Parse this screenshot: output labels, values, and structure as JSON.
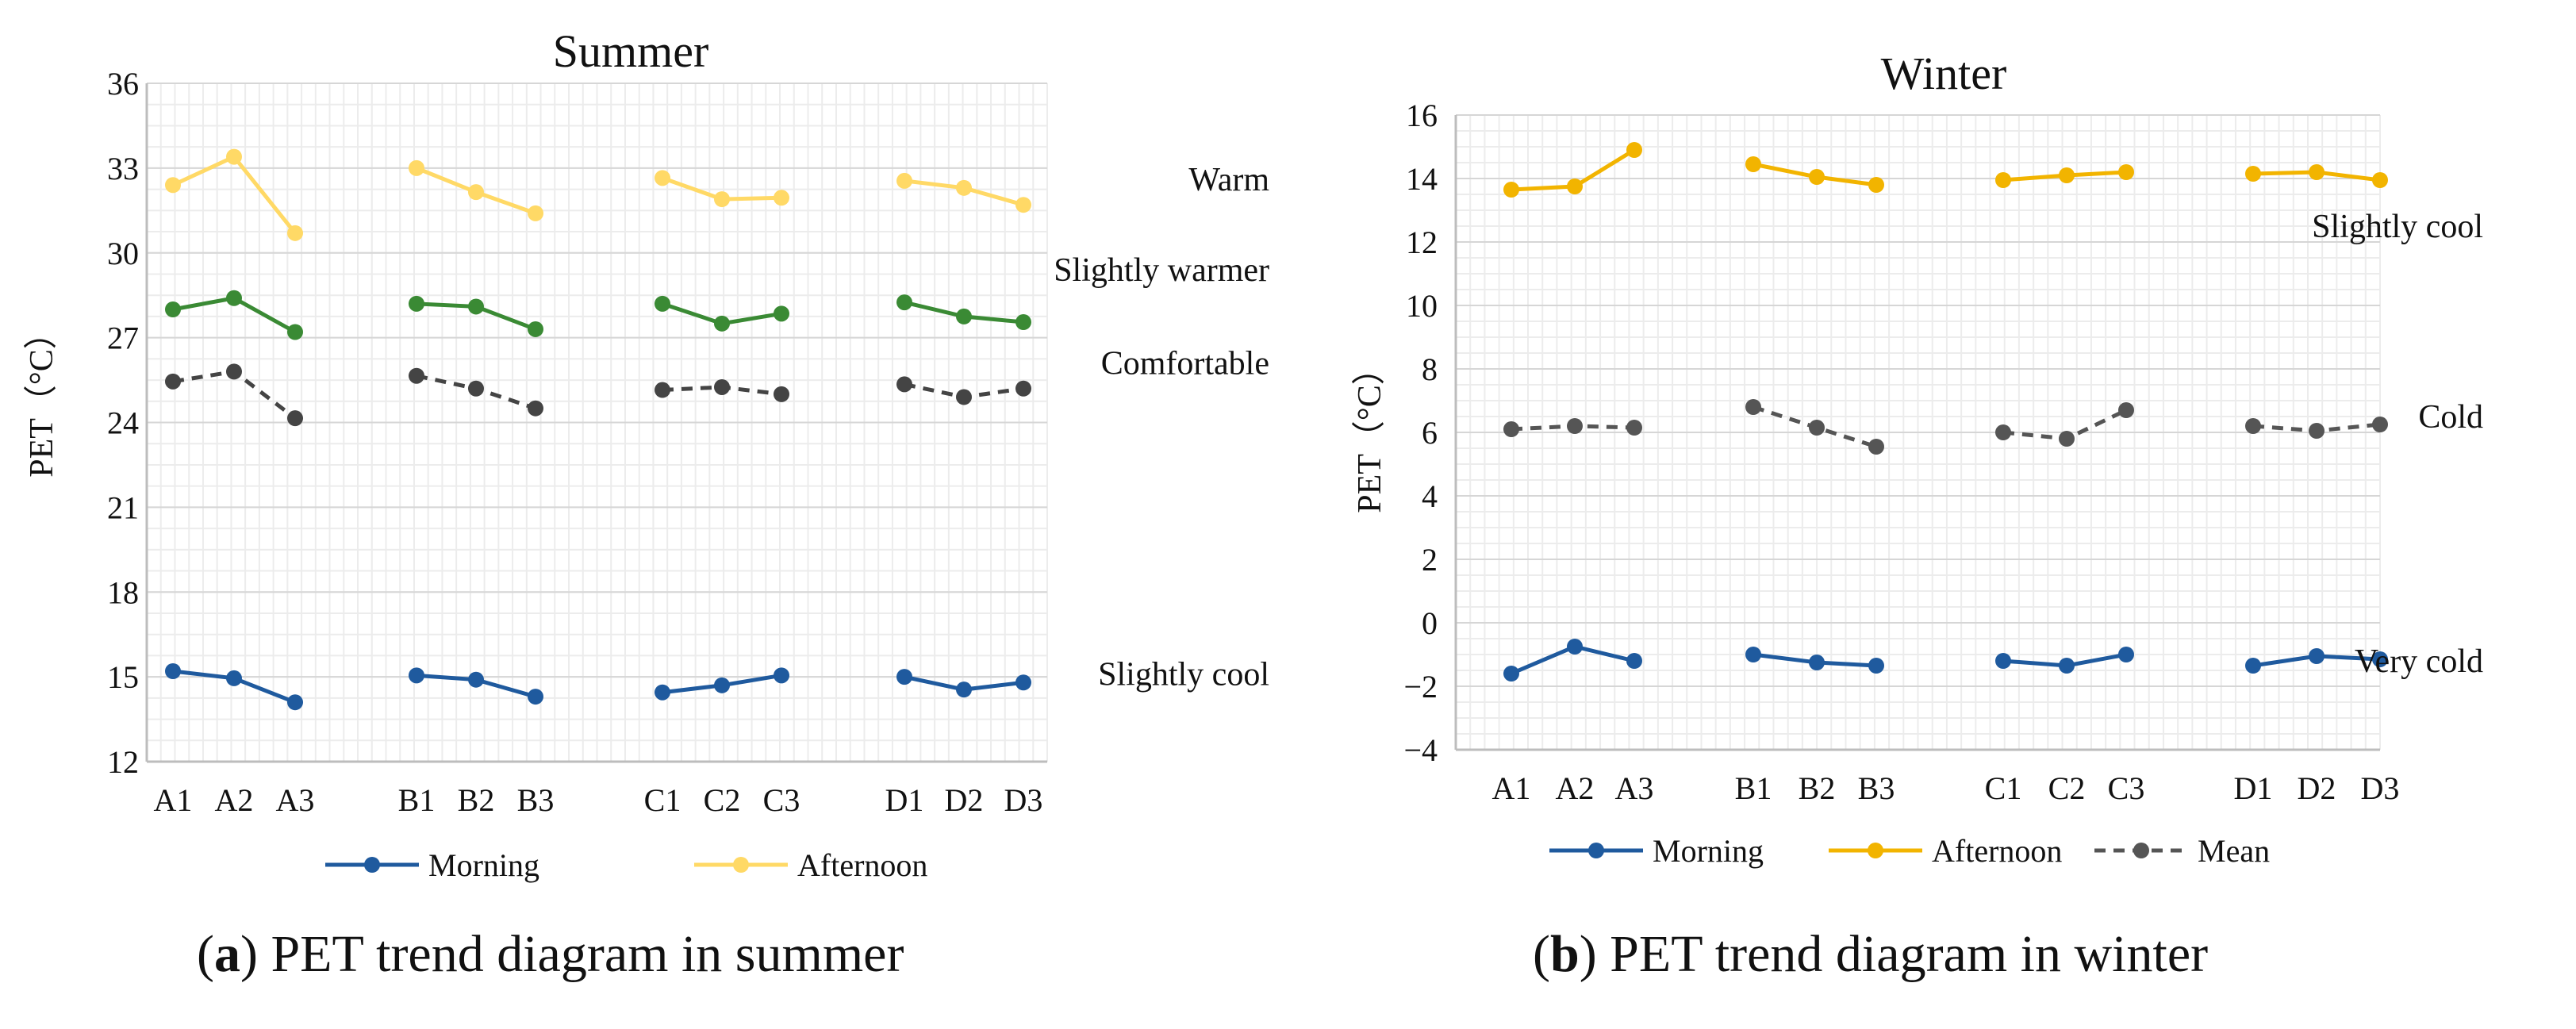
{
  "chart_data": [
    {
      "type": "line",
      "title": "Summer",
      "ylabel": "PET（°C）",
      "xlabel": "",
      "ylim": [
        12,
        36
      ],
      "yticks": [
        12,
        15,
        18,
        21,
        24,
        27,
        30,
        33,
        36
      ],
      "grid": true,
      "categories": [
        "A1",
        "A2",
        "A3",
        "B1",
        "B2",
        "B3",
        "C1",
        "C2",
        "C3",
        "D1",
        "D2",
        "D3"
      ],
      "series": [
        {
          "name": "Morning",
          "color": "#1f5a9e",
          "dashed": false,
          "in_legend": true,
          "values": [
            15.2,
            14.95,
            14.1,
            15.05,
            14.9,
            14.3,
            14.45,
            14.7,
            15.05,
            15.0,
            14.55,
            14.8
          ]
        },
        {
          "name": "Afternoon",
          "color": "#ffd966",
          "dashed": false,
          "in_legend": true,
          "values": [
            32.4,
            33.4,
            30.7,
            33.0,
            32.15,
            31.4,
            32.65,
            31.9,
            31.95,
            32.55,
            32.3,
            31.7
          ]
        },
        {
          "name": "",
          "color": "#3a8a34",
          "dashed": false,
          "in_legend": false,
          "values": [
            28.0,
            28.4,
            27.2,
            28.2,
            28.1,
            27.3,
            28.2,
            27.5,
            27.85,
            28.25,
            27.75,
            27.55
          ]
        },
        {
          "name": "",
          "color": "#444444",
          "dashed": true,
          "in_legend": false,
          "values": [
            25.45,
            25.8,
            24.15,
            25.65,
            25.2,
            24.5,
            25.15,
            25.25,
            25.0,
            25.35,
            24.9,
            25.2
          ]
        }
      ],
      "annotations": [
        {
          "text": "Warm",
          "y": 32.6
        },
        {
          "text": "Slightly warmer",
          "y": 29.4
        },
        {
          "text": "Comfortable",
          "y": 26.1
        },
        {
          "text": "Slightly cool",
          "y": 15.1
        }
      ],
      "caption_letter": "a",
      "caption_text": ") PET trend diagram in summer"
    },
    {
      "type": "line",
      "title": "Winter",
      "ylabel": "PET（°C）",
      "xlabel": "",
      "ylim": [
        -4,
        16
      ],
      "yticks": [
        -4,
        -2,
        0,
        2,
        4,
        6,
        8,
        10,
        12,
        14,
        16
      ],
      "grid": true,
      "categories": [
        "A1",
        "A2",
        "A3",
        "B1",
        "B2",
        "B3",
        "C1",
        "C2",
        "C3",
        "D1",
        "D2",
        "D3"
      ],
      "series": [
        {
          "name": "Morning",
          "color": "#1f5a9e",
          "dashed": false,
          "in_legend": true,
          "values": [
            -1.6,
            -0.75,
            -1.2,
            -1.0,
            -1.25,
            -1.35,
            -1.2,
            -1.35,
            -1.0,
            -1.35,
            -1.05,
            -1.15
          ]
        },
        {
          "name": "Afternoon",
          "color": "#f2b400",
          "dashed": false,
          "in_legend": true,
          "values": [
            13.65,
            13.75,
            14.9,
            14.45,
            14.05,
            13.8,
            13.95,
            14.1,
            14.2,
            14.15,
            14.2,
            13.95
          ]
        },
        {
          "name": "Mean",
          "color": "#555555",
          "dashed": true,
          "in_legend": true,
          "values": [
            6.1,
            6.2,
            6.15,
            6.8,
            6.15,
            5.55,
            6.0,
            5.8,
            6.7,
            6.2,
            6.05,
            6.25
          ]
        }
      ],
      "annotations": [
        {
          "text": "Slightly cool",
          "y": 12.5
        },
        {
          "text": "Cold",
          "y": 6.5
        },
        {
          "text": "Very cold",
          "y": -1.2
        }
      ],
      "caption_letter": "b",
      "caption_text": ") PET trend diagram in winter"
    }
  ]
}
